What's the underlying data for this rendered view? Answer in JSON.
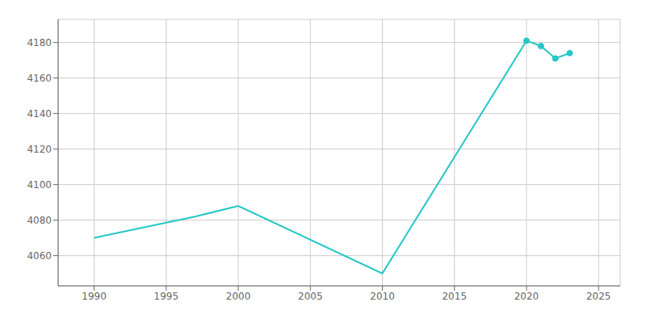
{
  "chart_data": {
    "type": "line",
    "x": [
      1990,
      1997,
      2000,
      2010,
      2020,
      2021,
      2022,
      2023
    ],
    "series": [
      {
        "type": "line",
        "color": "#26C6C6",
        "values": [
          4070,
          4082,
          4088,
          4050,
          4181,
          4178,
          4171,
          4174
        ]
      },
      {
        "type": "scatter",
        "marker": "circle",
        "color": "#26C6C6",
        "values": [
          null,
          null,
          null,
          null,
          4181,
          4178,
          4171,
          4174
        ]
      }
    ],
    "xlim": [
      1987.5,
      2026.5
    ],
    "ylim": [
      4043,
      4193
    ],
    "xticks": [
      1990,
      1995,
      2000,
      2005,
      2010,
      2015,
      2020,
      2025
    ],
    "yticks": [
      4060,
      4080,
      4100,
      4120,
      4140,
      4160,
      4180
    ],
    "grid": true
  }
}
